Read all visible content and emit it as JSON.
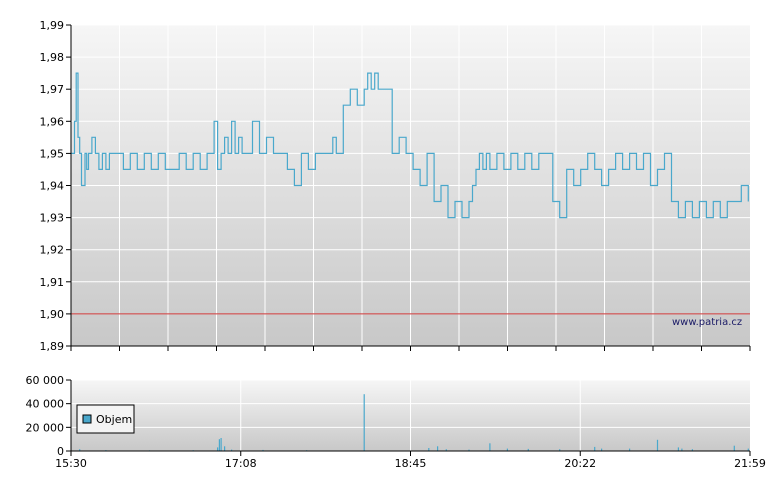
{
  "price_chart": {
    "type": "line",
    "y_ticks": [
      "1,99",
      "1,98",
      "1,97",
      "1,96",
      "1,95",
      "1,94",
      "1,93",
      "1,92",
      "1,91",
      "1,90",
      "1,89"
    ],
    "ylim": [
      1.89,
      1.99
    ],
    "reference_line": {
      "value": 1.9,
      "color": "#cc3333"
    },
    "series_color": "#4aa8cc",
    "watermark": "www.patria.cz",
    "grid": true,
    "x_range_minutes": [
      0,
      389
    ],
    "x": [
      0,
      2,
      3,
      4,
      5,
      6,
      8,
      9,
      10,
      12,
      14,
      16,
      18,
      20,
      22,
      26,
      30,
      34,
      38,
      42,
      46,
      50,
      54,
      58,
      62,
      66,
      70,
      74,
      78,
      82,
      84,
      86,
      88,
      90,
      92,
      94,
      96,
      98,
      100,
      104,
      108,
      112,
      116,
      120,
      124,
      128,
      132,
      136,
      140,
      144,
      148,
      150,
      152,
      156,
      160,
      164,
      168,
      170,
      172,
      174,
      176,
      180,
      184,
      188,
      192,
      196,
      200,
      204,
      208,
      212,
      216,
      220,
      224,
      228,
      230,
      232,
      234,
      236,
      238,
      240,
      244,
      248,
      252,
      256,
      260,
      264,
      268,
      272,
      276,
      280,
      284,
      288,
      292,
      296,
      300,
      304,
      308,
      312,
      316,
      320,
      324,
      328,
      332,
      336,
      340,
      344,
      348,
      352,
      356,
      360,
      364,
      368,
      372,
      376,
      380,
      384,
      386,
      388
    ],
    "y": [
      1.95,
      1.96,
      1.975,
      1.955,
      1.95,
      1.94,
      1.95,
      1.945,
      1.95,
      1.955,
      1.95,
      1.945,
      1.95,
      1.945,
      1.95,
      1.95,
      1.945,
      1.95,
      1.945,
      1.95,
      1.945,
      1.95,
      1.945,
      1.945,
      1.95,
      1.945,
      1.95,
      1.945,
      1.95,
      1.96,
      1.945,
      1.95,
      1.955,
      1.95,
      1.96,
      1.95,
      1.955,
      1.95,
      1.95,
      1.96,
      1.95,
      1.955,
      1.95,
      1.95,
      1.945,
      1.94,
      1.95,
      1.945,
      1.95,
      1.95,
      1.95,
      1.955,
      1.95,
      1.965,
      1.97,
      1.965,
      1.97,
      1.975,
      1.97,
      1.975,
      1.97,
      1.97,
      1.95,
      1.955,
      1.95,
      1.945,
      1.94,
      1.95,
      1.935,
      1.94,
      1.93,
      1.935,
      1.93,
      1.935,
      1.94,
      1.945,
      1.95,
      1.945,
      1.95,
      1.945,
      1.95,
      1.945,
      1.95,
      1.945,
      1.95,
      1.945,
      1.95,
      1.95,
      1.935,
      1.93,
      1.945,
      1.94,
      1.945,
      1.95,
      1.945,
      1.94,
      1.945,
      1.95,
      1.945,
      1.95,
      1.945,
      1.95,
      1.94,
      1.945,
      1.95,
      1.935,
      1.93,
      1.935,
      1.93,
      1.935,
      1.93,
      1.935,
      1.93,
      1.935,
      1.935,
      1.94,
      1.94,
      1.935
    ]
  },
  "volume_chart": {
    "type": "bar",
    "y_ticks": [
      "60 000",
      "40 000",
      "20 000",
      "0"
    ],
    "ylim": [
      0,
      60000
    ],
    "legend_label": "Objem",
    "legend_color": "#4aa8cc",
    "x_tick_labels": [
      "15:30",
      "17:08",
      "18:45",
      "20:22",
      "21:59"
    ],
    "x": [
      5,
      20,
      45,
      70,
      84,
      85,
      86,
      88,
      92,
      110,
      135,
      168,
      205,
      210,
      215,
      228,
      240,
      250,
      262,
      280,
      300,
      304,
      320,
      336,
      348,
      350,
      356,
      380,
      388
    ],
    "values": [
      1500,
      800,
      600,
      700,
      3000,
      10000,
      11000,
      4000,
      1200,
      900,
      700,
      48000,
      2500,
      4000,
      1500,
      1200,
      6500,
      2000,
      1800,
      1500,
      3500,
      2000,
      2000,
      9500,
      3000,
      2000,
      1500,
      4500,
      2000
    ]
  }
}
